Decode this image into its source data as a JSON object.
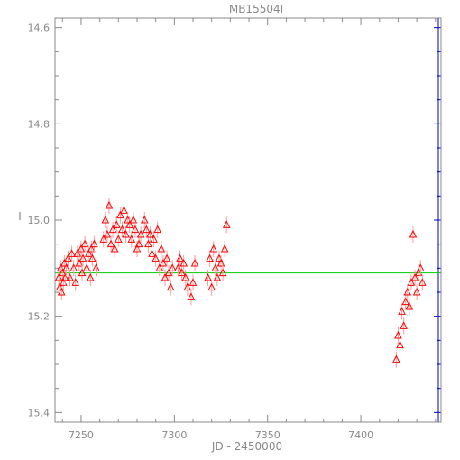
{
  "chart_data": {
    "type": "scatter",
    "title": "MB15504I",
    "xlabel": "JD - 2450000",
    "ylabel": "I",
    "xlim": [
      7236,
      7443
    ],
    "ylim": [
      15.42,
      14.58
    ],
    "y_inverted": true,
    "xticks": [
      7250,
      7300,
      7350,
      7400
    ],
    "xtick_labels": [
      "7250",
      "7300",
      "7350",
      "7400"
    ],
    "yticks": [
      14.6,
      14.8,
      15.0,
      15.2,
      15.4
    ],
    "ytick_labels": [
      "14.6",
      "14.8",
      "15.0",
      "15.2",
      "15.4"
    ],
    "grid": false,
    "legend": "none",
    "colors": {
      "axes": "#888888",
      "data": "#ff0000",
      "model": "#00cc00",
      "right_axis_ticks": "#0000cc"
    },
    "marker": "triangle-open",
    "model_line": {
      "x": [
        7236,
        7443
      ],
      "y": [
        15.11,
        15.11
      ]
    },
    "series": [
      {
        "x": [
          7238,
          7238.5,
          7239,
          7239.5,
          7240,
          7240.5,
          7241,
          7241.5,
          7242,
          7243,
          7244,
          7245,
          7246,
          7247,
          7248,
          7249,
          7250,
          7250.5,
          7251,
          7252,
          7253,
          7254,
          7255,
          7255.5,
          7256,
          7257,
          7258,
          7262,
          7263,
          7264,
          7265,
          7266,
          7267,
          7268,
          7269,
          7270,
          7271,
          7272,
          7273,
          7274,
          7275,
          7276,
          7277,
          7278,
          7279,
          7280,
          7281,
          7282,
          7284,
          7285,
          7286,
          7287,
          7288,
          7289,
          7290,
          7291,
          7292,
          7293,
          7294,
          7295,
          7296,
          7297,
          7298,
          7299,
          7302,
          7303,
          7304,
          7305,
          7306,
          7307,
          7309,
          7310,
          7311,
          7318,
          7319,
          7320,
          7321,
          7322,
          7323,
          7324,
          7325,
          7326,
          7327,
          7328,
          7419,
          7420,
          7421,
          7422,
          7423,
          7424,
          7425,
          7426,
          7427,
          7428,
          7429,
          7430,
          7431,
          7432,
          7433
        ],
        "y": [
          15.12,
          15.14,
          15.1,
          15.15,
          15.11,
          15.13,
          15.09,
          15.12,
          15.1,
          15.08,
          15.12,
          15.07,
          15.1,
          15.13,
          15.07,
          15.09,
          15.06,
          15.11,
          15.08,
          15.05,
          15.1,
          15.07,
          15.12,
          15.06,
          15.08,
          15.05,
          15.1,
          15.04,
          15.0,
          15.03,
          14.97,
          15.05,
          15.02,
          15.06,
          15.01,
          15.04,
          14.99,
          15.02,
          14.98,
          15.03,
          15.0,
          15.01,
          15.04,
          15.0,
          15.02,
          15.06,
          15.05,
          15.03,
          15.0,
          15.02,
          15.05,
          15.03,
          15.07,
          15.04,
          15.08,
          15.02,
          15.1,
          15.06,
          15.09,
          15.12,
          15.08,
          15.11,
          15.14,
          15.1,
          15.1,
          15.08,
          15.11,
          15.09,
          15.12,
          15.14,
          15.16,
          15.13,
          15.09,
          15.12,
          15.08,
          15.14,
          15.06,
          15.1,
          15.12,
          15.08,
          15.09,
          15.11,
          15.06,
          15.01,
          15.29,
          15.24,
          15.26,
          15.19,
          15.22,
          15.17,
          15.15,
          15.18,
          15.13,
          15.03,
          15.12,
          15.15,
          15.11,
          15.1,
          15.13
        ]
      }
    ]
  }
}
